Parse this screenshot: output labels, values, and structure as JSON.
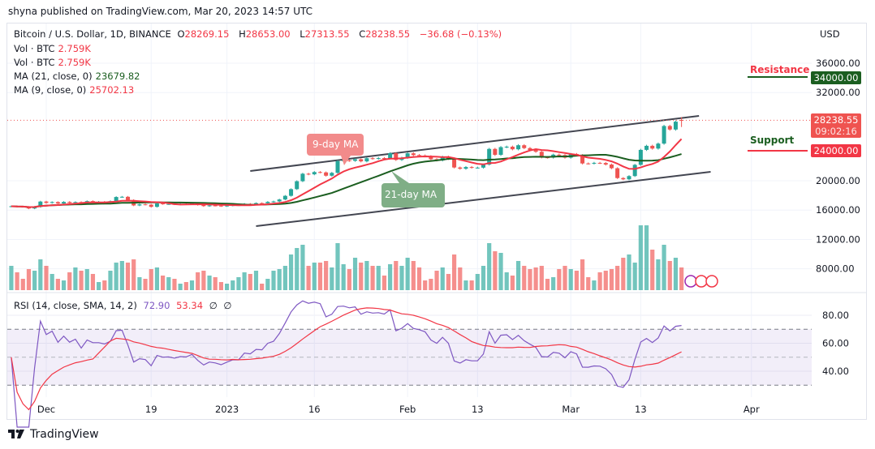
{
  "published": "shyna published on TradingView.com, Mar 20, 2023 14:57 UTC",
  "legend": {
    "symbol": "Bitcoin / U.S. Dollar, 1D, BINANCE",
    "o_label": "O",
    "o": "28269.15",
    "h_label": "H",
    "h": "28653.00",
    "l_label": "L",
    "l": "27313.55",
    "c_label": "C",
    "c": "28238.55",
    "change": "−36.68 (−0.13%)",
    "vol1_label": "Vol · BTC",
    "vol1": "2.759K",
    "vol2_label": "Vol · BTC",
    "vol2": "2.759K",
    "ma21_label": "MA (21, close, 0)",
    "ma21": "23679.82",
    "ma9_label": "MA (9, close, 0)",
    "ma9": "25702.13",
    "rsi_label": "RSI (14, close, SMA, 14, 2)",
    "rsi": "72.90",
    "rsi_sma": "53.34",
    "rsi_extra1": "∅",
    "rsi_extra2": "∅"
  },
  "currency": "USD",
  "last_price": {
    "value": "28238.55",
    "countdown": "09:02:16",
    "color": "#ef5350"
  },
  "annotations": {
    "resistance": {
      "text": "Resistance",
      "price": 34000,
      "label": "34000.00",
      "color": "#1b5e20",
      "text_color": "#f23645"
    },
    "support": {
      "text": "Support",
      "price": 24000,
      "label": "24000.00",
      "color": "#f23645",
      "text_color": "#1b5e20"
    },
    "ma9_callout": "9-day MA",
    "ma21_callout": "21-day MA"
  },
  "brand": "TradingView",
  "colors": {
    "up": "#26a69a",
    "down": "#ef5350",
    "ma9": "#f23645",
    "ma21": "#1b5e20",
    "rsi": "#7e57c2",
    "rsi_sma": "#f23645"
  },
  "chart_data": {
    "type": "candlestick",
    "price_axis": {
      "ticks": [
        36000,
        32000,
        20000,
        16000,
        12000,
        8000
      ],
      "tick_labels": [
        "36000.00",
        "32000.00",
        "20000.00",
        "16000.00",
        "12000.00",
        "8000.00"
      ]
    },
    "rsi_axis": {
      "ticks": [
        80,
        60,
        40
      ],
      "tick_labels": [
        "80.00",
        "60.00",
        "40.00"
      ],
      "band": [
        30,
        70
      ],
      "mid": 50
    },
    "x_ticks": [
      {
        "date": "2022-12-01",
        "label": "Dec"
      },
      {
        "date": "2022-12-19",
        "label": "19"
      },
      {
        "date": "2023-01-01",
        "label": "2023"
      },
      {
        "date": "2023-01-16",
        "label": "16"
      },
      {
        "date": "2023-02-01",
        "label": "Feb"
      },
      {
        "date": "2023-02-13",
        "label": "13"
      },
      {
        "date": "2023-03-01",
        "label": "Mar"
      },
      {
        "date": "2023-03-13",
        "label": "13"
      },
      {
        "date": "2023-04-01",
        "label": "Apr"
      }
    ],
    "dates": [
      "2022-11-25",
      "2022-11-26",
      "2022-11-27",
      "2022-11-28",
      "2022-11-29",
      "2022-11-30",
      "2022-12-01",
      "2022-12-02",
      "2022-12-03",
      "2022-12-04",
      "2022-12-05",
      "2022-12-06",
      "2022-12-07",
      "2022-12-08",
      "2022-12-09",
      "2022-12-10",
      "2022-12-11",
      "2022-12-12",
      "2022-12-13",
      "2022-12-14",
      "2022-12-15",
      "2022-12-16",
      "2022-12-17",
      "2022-12-18",
      "2022-12-19",
      "2022-12-20",
      "2022-12-21",
      "2022-12-22",
      "2022-12-23",
      "2022-12-24",
      "2022-12-25",
      "2022-12-26",
      "2022-12-27",
      "2022-12-28",
      "2022-12-29",
      "2022-12-30",
      "2022-12-31",
      "2023-01-01",
      "2023-01-02",
      "2023-01-03",
      "2023-01-04",
      "2023-01-05",
      "2023-01-06",
      "2023-01-07",
      "2023-01-08",
      "2023-01-09",
      "2023-01-10",
      "2023-01-11",
      "2023-01-12",
      "2023-01-13",
      "2023-01-14",
      "2023-01-15",
      "2023-01-16",
      "2023-01-17",
      "2023-01-18",
      "2023-01-19",
      "2023-01-20",
      "2023-01-21",
      "2023-01-22",
      "2023-01-23",
      "2023-01-24",
      "2023-01-25",
      "2023-01-26",
      "2023-01-27",
      "2023-01-28",
      "2023-01-29",
      "2023-01-30",
      "2023-01-31",
      "2023-02-01",
      "2023-02-02",
      "2023-02-03",
      "2023-02-04",
      "2023-02-05",
      "2023-02-06",
      "2023-02-07",
      "2023-02-08",
      "2023-02-09",
      "2023-02-10",
      "2023-02-11",
      "2023-02-12",
      "2023-02-13",
      "2023-02-14",
      "2023-02-15",
      "2023-02-16",
      "2023-02-17",
      "2023-02-18",
      "2023-02-19",
      "2023-02-20",
      "2023-02-21",
      "2023-02-22",
      "2023-02-23",
      "2023-02-24",
      "2023-02-25",
      "2023-02-26",
      "2023-02-27",
      "2023-02-28",
      "2023-03-01",
      "2023-03-02",
      "2023-03-03",
      "2023-03-04",
      "2023-03-05",
      "2023-03-06",
      "2023-03-07",
      "2023-03-08",
      "2023-03-09",
      "2023-03-10",
      "2023-03-11",
      "2023-03-12",
      "2023-03-13",
      "2023-03-14",
      "2023-03-15",
      "2023-03-16",
      "2023-03-17",
      "2023-03-18",
      "2023-03-19",
      "2023-03-20"
    ],
    "close": [
      16520,
      16460,
      16440,
      16220,
      16440,
      17160,
      16980,
      17090,
      16890,
      17110,
      16970,
      17090,
      16840,
      17220,
      17130,
      17130,
      17090,
      17210,
      17780,
      17810,
      17360,
      16630,
      16780,
      16740,
      16440,
      16900,
      16820,
      16830,
      16780,
      16840,
      16830,
      16920,
      16710,
      16540,
      16630,
      16600,
      16540,
      16610,
      16670,
      16670,
      16850,
      16830,
      16950,
      16940,
      17120,
      17180,
      17440,
      17940,
      18850,
      19930,
      20950,
      20870,
      21180,
      21130,
      20680,
      21070,
      22670,
      22780,
      22710,
      22920,
      22630,
      23060,
      23010,
      23080,
      23030,
      23740,
      22830,
      23130,
      23730,
      23490,
      23430,
      23330,
      22930,
      22760,
      23260,
      22960,
      21800,
      21630,
      21860,
      21780,
      21780,
      22200,
      24330,
      23520,
      24570,
      24630,
      24280,
      24830,
      24440,
      24180,
      23940,
      23180,
      23150,
      23550,
      23490,
      23140,
      23630,
      23470,
      22350,
      22340,
      22430,
      22410,
      22200,
      21700,
      20360,
      20190,
      20630,
      22160,
      24200,
      24750,
      24380,
      25050,
      27450,
      26970,
      28040,
      28238.55
    ],
    "last_candle": {
      "open": 28269.15,
      "high": 28653.0,
      "low": 27313.55,
      "close": 28238.55
    },
    "volume": [
      30,
      22,
      14,
      26,
      24,
      38,
      30,
      20,
      14,
      12,
      22,
      28,
      24,
      26,
      20,
      10,
      12,
      24,
      34,
      36,
      34,
      38,
      16,
      14,
      26,
      28,
      18,
      16,
      14,
      8,
      10,
      12,
      22,
      24,
      18,
      16,
      10,
      8,
      12,
      16,
      22,
      20,
      24,
      8,
      14,
      24,
      26,
      30,
      44,
      52,
      56,
      30,
      34,
      34,
      36,
      28,
      58,
      32,
      26,
      40,
      34,
      36,
      30,
      30,
      18,
      32,
      36,
      30,
      40,
      36,
      28,
      12,
      14,
      24,
      28,
      20,
      44,
      28,
      12,
      12,
      20,
      30,
      58,
      48,
      46,
      22,
      18,
      36,
      30,
      26,
      28,
      30,
      14,
      16,
      26,
      30,
      26,
      24,
      38,
      16,
      12,
      22,
      24,
      26,
      30,
      40,
      44,
      34,
      80,
      80,
      50,
      38,
      56,
      36,
      40,
      28
    ],
    "ma9": {
      "period": 9,
      "value": 25702.13
    },
    "ma21": {
      "period": 21,
      "value": 23679.82
    },
    "rsi": {
      "period": 14,
      "sma_period": 14,
      "value": 72.9,
      "sma_value": 53.34
    },
    "trendlines": [
      {
        "name": "upper-channel",
        "from": {
          "date": "2023-01-05",
          "price": 21320
        },
        "to": {
          "date": "2023-03-23",
          "price": 28830
        }
      },
      {
        "name": "lower-channel",
        "from": {
          "date": "2023-01-06",
          "price": 13810
        },
        "to": {
          "date": "2023-03-25",
          "price": 21210
        }
      }
    ]
  }
}
